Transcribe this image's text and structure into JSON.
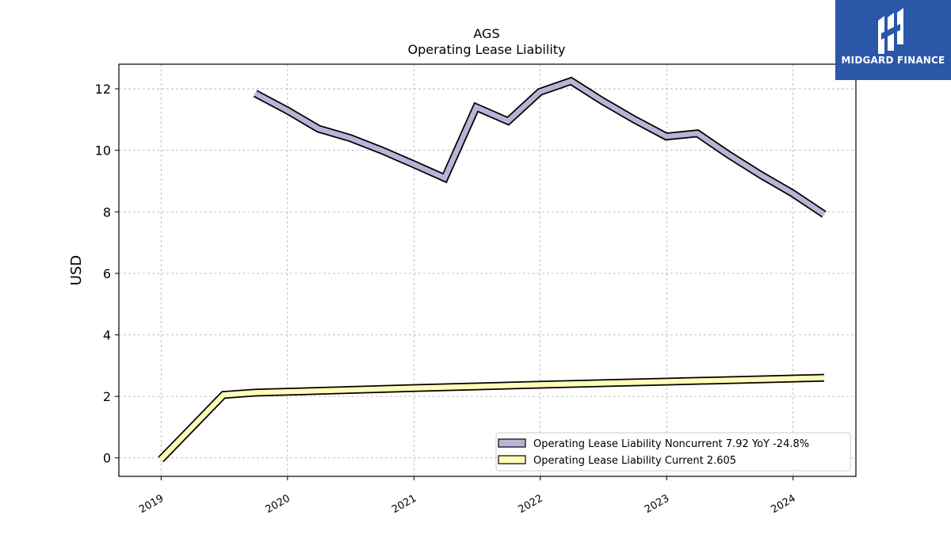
{
  "chart_data": {
    "type": "line",
    "title": "AGS",
    "subtitle": "Operating Lease Liability",
    "xlabel": "",
    "ylabel": "USD",
    "x_ticks": [
      "2019",
      "2020",
      "2021",
      "2022",
      "2023",
      "2024"
    ],
    "y_ticks": [
      0,
      2,
      4,
      6,
      8,
      10,
      12
    ],
    "xlim": [
      "2018-09-01",
      "2024-07-01"
    ],
    "ylim": [
      -0.6,
      12.8
    ],
    "grid": true,
    "legend_position": "lower-right",
    "series": [
      {
        "name": "Operating Lease Liability Noncurrent",
        "legend_label": "Operating Lease Liability Noncurrent  7.92 YoY -24.8%",
        "color": "#b8b4d8",
        "points": [
          [
            "2019-09-30",
            11.85
          ],
          [
            "2019-12-31",
            11.3
          ],
          [
            "2020-03-31",
            10.7
          ],
          [
            "2020-06-30",
            10.4
          ],
          [
            "2020-09-30",
            10.0
          ],
          [
            "2020-12-31",
            9.55
          ],
          [
            "2021-03-31",
            9.1
          ],
          [
            "2021-06-30",
            11.4
          ],
          [
            "2021-09-30",
            10.95
          ],
          [
            "2021-12-31",
            11.9
          ],
          [
            "2022-03-31",
            12.25
          ],
          [
            "2022-06-30",
            11.6
          ],
          [
            "2022-09-30",
            11.0
          ],
          [
            "2022-12-31",
            10.45
          ],
          [
            "2023-03-31",
            10.55
          ],
          [
            "2023-06-30",
            9.85
          ],
          [
            "2023-09-30",
            9.2
          ],
          [
            "2023-12-31",
            8.6
          ],
          [
            "2024-03-31",
            7.92
          ]
        ]
      },
      {
        "name": "Operating Lease Liability Current",
        "legend_label": "Operating Lease Liability Current  2.605",
        "color": "#fdfdb8",
        "points": [
          [
            "2018-12-31",
            -0.05
          ],
          [
            "2019-06-30",
            2.05
          ],
          [
            "2019-09-30",
            2.12
          ],
          [
            "2019-12-31",
            2.15
          ],
          [
            "2020-12-31",
            2.27
          ],
          [
            "2021-12-31",
            2.38
          ],
          [
            "2022-12-31",
            2.48
          ],
          [
            "2023-12-31",
            2.58
          ],
          [
            "2024-03-31",
            2.605
          ]
        ]
      }
    ]
  },
  "logo": {
    "text": "MIDGARD FINANCE",
    "color": "#2b57a8"
  }
}
